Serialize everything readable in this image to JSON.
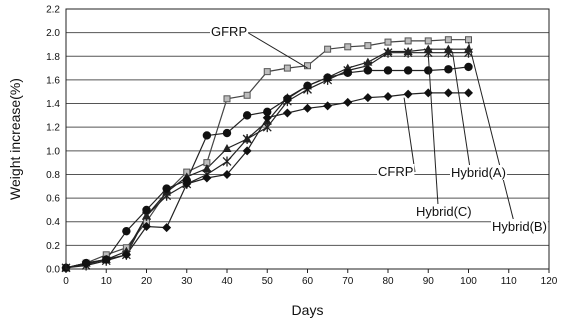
{
  "chart_data": {
    "type": "line",
    "title": "",
    "xlabel": "Days",
    "ylabel": "Weight increase(%)",
    "xlim": [
      0,
      120
    ],
    "ylim": [
      0,
      2.2
    ],
    "x_ticks": [
      0,
      10,
      20,
      30,
      40,
      50,
      60,
      70,
      80,
      90,
      100,
      110,
      120
    ],
    "y_ticks": [
      0.0,
      0.2,
      0.4,
      0.6,
      0.8,
      1.0,
      1.2,
      1.4,
      1.6,
      1.8,
      2.0,
      2.2
    ],
    "y_tick_labels": [
      "0.0",
      "0.2",
      "0.4",
      "0.6",
      "0.8",
      "1.0",
      "1.2",
      "1.4",
      "1.6",
      "1.8",
      "2.0",
      "2.2"
    ],
    "grid": "horizontal",
    "legend": "none (series labelled by callouts)",
    "series": [
      {
        "name": "GFRP",
        "marker": "square",
        "color": "#999999",
        "points": [
          [
            0,
            0.01
          ],
          [
            5,
            0.05
          ],
          [
            10,
            0.12
          ],
          [
            15,
            0.18
          ],
          [
            20,
            0.4
          ],
          [
            25,
            0.65
          ],
          [
            30,
            0.82
          ],
          [
            35,
            0.9
          ],
          [
            40,
            1.44
          ],
          [
            45,
            1.47
          ],
          [
            50,
            1.67
          ],
          [
            55,
            1.7
          ],
          [
            60,
            1.72
          ],
          [
            65,
            1.86
          ],
          [
            70,
            1.88
          ],
          [
            75,
            1.89
          ],
          [
            80,
            1.92
          ],
          [
            85,
            1.93
          ],
          [
            90,
            1.93
          ],
          [
            95,
            1.94
          ],
          [
            100,
            1.94
          ]
        ]
      },
      {
        "name": "Hybrid(B)",
        "marker": "triangle",
        "color": "#222222",
        "points": [
          [
            0,
            0.01
          ],
          [
            5,
            0.05
          ],
          [
            10,
            0.08
          ],
          [
            15,
            0.15
          ],
          [
            20,
            0.45
          ],
          [
            25,
            0.65
          ],
          [
            30,
            0.78
          ],
          [
            35,
            0.85
          ],
          [
            40,
            1.02
          ],
          [
            45,
            1.1
          ],
          [
            50,
            1.25
          ],
          [
            55,
            1.45
          ],
          [
            60,
            1.55
          ],
          [
            65,
            1.62
          ],
          [
            70,
            1.7
          ],
          [
            75,
            1.75
          ],
          [
            80,
            1.84
          ],
          [
            85,
            1.84
          ],
          [
            90,
            1.86
          ],
          [
            95,
            1.86
          ],
          [
            100,
            1.86
          ]
        ]
      },
      {
        "name": "Hybrid(C)",
        "marker": "star",
        "color": "#222222",
        "points": [
          [
            0,
            0.01
          ],
          [
            5,
            0.03
          ],
          [
            10,
            0.07
          ],
          [
            15,
            0.12
          ],
          [
            20,
            0.45
          ],
          [
            25,
            0.62
          ],
          [
            30,
            0.72
          ],
          [
            35,
            0.8
          ],
          [
            40,
            0.91
          ],
          [
            45,
            1.1
          ],
          [
            50,
            1.2
          ],
          [
            55,
            1.42
          ],
          [
            60,
            1.52
          ],
          [
            65,
            1.6
          ],
          [
            70,
            1.68
          ],
          [
            75,
            1.72
          ],
          [
            80,
            1.83
          ],
          [
            85,
            1.83
          ],
          [
            90,
            1.83
          ],
          [
            95,
            1.83
          ],
          [
            100,
            1.83
          ]
        ]
      },
      {
        "name": "Hybrid(A)",
        "marker": "circle",
        "color": "#111111",
        "points": [
          [
            0,
            0.01
          ],
          [
            5,
            0.05
          ],
          [
            10,
            0.08
          ],
          [
            15,
            0.32
          ],
          [
            20,
            0.5
          ],
          [
            25,
            0.68
          ],
          [
            30,
            0.75
          ],
          [
            35,
            1.13
          ],
          [
            40,
            1.15
          ],
          [
            45,
            1.3
          ],
          [
            50,
            1.33
          ],
          [
            55,
            1.44
          ],
          [
            60,
            1.55
          ],
          [
            65,
            1.62
          ],
          [
            70,
            1.66
          ],
          [
            75,
            1.68
          ],
          [
            80,
            1.68
          ],
          [
            85,
            1.68
          ],
          [
            90,
            1.68
          ],
          [
            95,
            1.69
          ],
          [
            100,
            1.71
          ]
        ]
      },
      {
        "name": "CFRP",
        "marker": "diamond",
        "color": "#111111",
        "points": [
          [
            0,
            0.01
          ],
          [
            5,
            0.04
          ],
          [
            10,
            0.08
          ],
          [
            15,
            0.12
          ],
          [
            20,
            0.36
          ],
          [
            25,
            0.35
          ],
          [
            30,
            0.72
          ],
          [
            35,
            0.77
          ],
          [
            40,
            0.8
          ],
          [
            45,
            1.0
          ],
          [
            50,
            1.28
          ],
          [
            55,
            1.32
          ],
          [
            60,
            1.36
          ],
          [
            65,
            1.38
          ],
          [
            70,
            1.41
          ],
          [
            75,
            1.45
          ],
          [
            80,
            1.46
          ],
          [
            85,
            1.48
          ],
          [
            90,
            1.49
          ],
          [
            95,
            1.49
          ],
          [
            100,
            1.49
          ]
        ]
      }
    ],
    "annotations": [
      {
        "text": "GFRP",
        "target": [
          60,
          1.7
        ]
      },
      {
        "text": "Hybrid(B)",
        "target": [
          100,
          1.92
        ]
      },
      {
        "text": "Hybrid(A)",
        "target": [
          96,
          1.84
        ]
      },
      {
        "text": "CFRP",
        "target": [
          84,
          1.45
        ]
      },
      {
        "text": "Hybrid(C)",
        "target": [
          90,
          1.82
        ]
      }
    ]
  }
}
